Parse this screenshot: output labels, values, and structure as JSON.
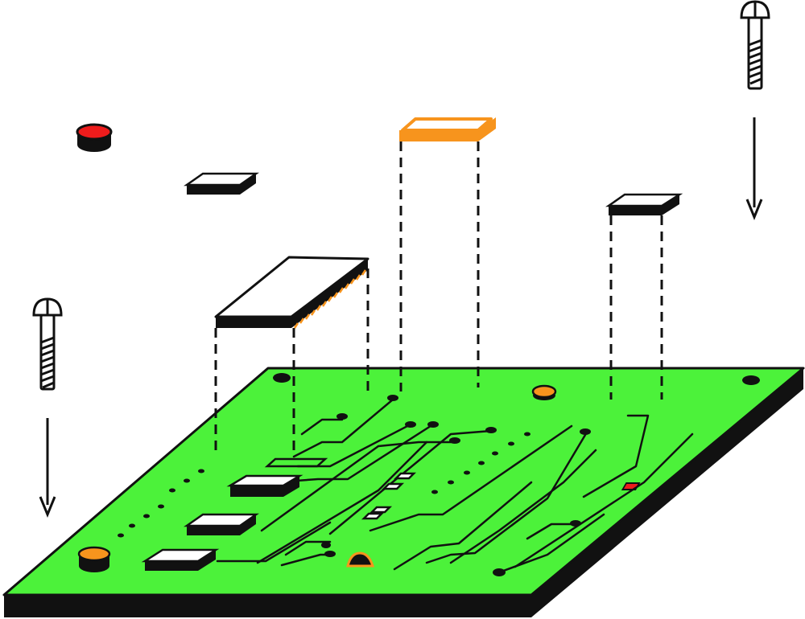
{
  "diagram": {
    "type": "exploded-assembly",
    "subject": "circuit-board",
    "colors": {
      "board": "#4cf23a",
      "board_edge": "#111111",
      "outline": "#111111",
      "chip_fill": "#ffffff",
      "accent_orange": "#f7941d",
      "accent_red": "#ee1c1c"
    },
    "parts": [
      {
        "name": "red-button-cap",
        "color": "accent_red"
      },
      {
        "name": "small-chip",
        "color": "chip_fill"
      },
      {
        "name": "large-ic-chip",
        "color": "chip_fill"
      },
      {
        "name": "orange-chip",
        "color": "accent_orange"
      },
      {
        "name": "right-chip",
        "color": "chip_fill"
      },
      {
        "name": "left-screw",
        "icon": "screw-icon"
      },
      {
        "name": "right-screw",
        "icon": "screw-icon"
      }
    ]
  }
}
